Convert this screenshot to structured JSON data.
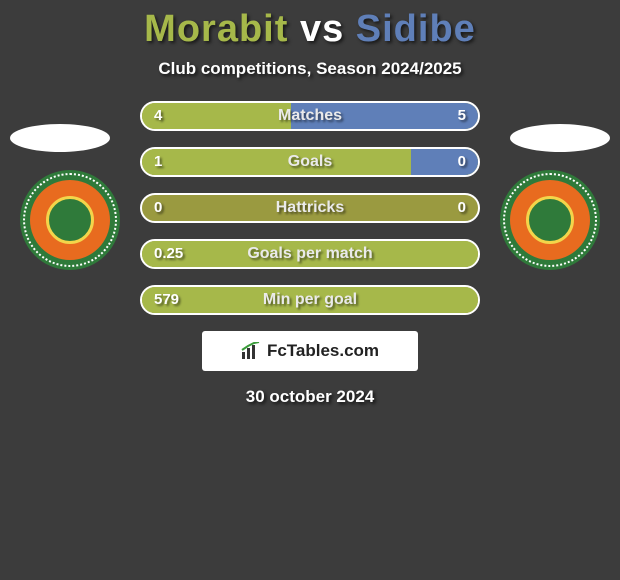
{
  "title": {
    "player1": "Morabit",
    "vs": " vs ",
    "player2": "Sidibe",
    "color1": "#a6b84a",
    "color_vs": "#ffffff",
    "color2": "#5f7fb8"
  },
  "subtitle": "Club competitions, Season 2024/2025",
  "accent_left": "#a6b84a",
  "accent_right": "#5f7fb8",
  "bar_bg": "#9a9a40",
  "body_bg": "#3c3c3c",
  "stats": [
    {
      "label": "Matches",
      "left_val": "4",
      "right_val": "5",
      "left_pct": 44.4,
      "right_pct": 55.6,
      "right_fill": true
    },
    {
      "label": "Goals",
      "left_val": "1",
      "right_val": "0",
      "left_pct": 100,
      "right_pct": 20,
      "right_fill": true
    },
    {
      "label": "Hattricks",
      "left_val": "0",
      "right_val": "0",
      "left_pct": 0,
      "right_pct": 0,
      "right_fill": false
    },
    {
      "label": "Goals per match",
      "left_val": "0.25",
      "right_val": "",
      "left_pct": 100,
      "right_pct": 0,
      "right_fill": false
    },
    {
      "label": "Min per goal",
      "left_val": "579",
      "right_val": "",
      "left_pct": 100,
      "right_pct": 0,
      "right_fill": false
    }
  ],
  "brand": "FcTables.com",
  "date": "30 october 2024",
  "badge": {
    "outer": "#2f7a3a",
    "ring": "#e86b1f",
    "inner": "#2f7a3a",
    "inner_border": "#f3d54a"
  }
}
